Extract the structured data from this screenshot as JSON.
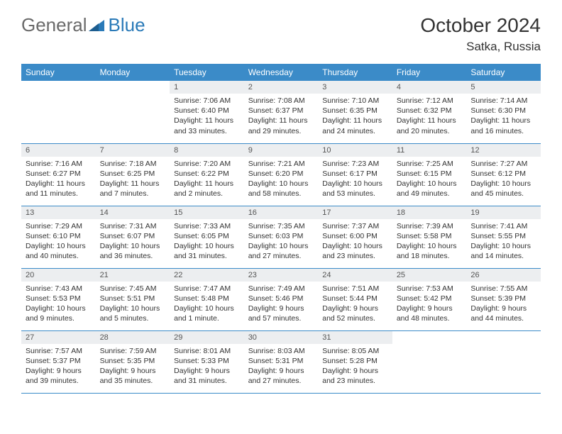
{
  "logo": {
    "general": "General",
    "blue": "Blue"
  },
  "title": "October 2024",
  "location": "Satka, Russia",
  "colors": {
    "header_bg": "#3b8bc8",
    "header_text": "#ffffff",
    "daynum_bg": "#eceef0",
    "body_text": "#333333",
    "logo_gray": "#6a6a6a",
    "logo_blue": "#2a7ab8",
    "page_bg": "#ffffff"
  },
  "weekdays": [
    "Sunday",
    "Monday",
    "Tuesday",
    "Wednesday",
    "Thursday",
    "Friday",
    "Saturday"
  ],
  "first_weekday_index": 2,
  "days": [
    {
      "n": 1,
      "sunrise": "7:06 AM",
      "sunset": "6:40 PM",
      "daylight": "11 hours and 33 minutes."
    },
    {
      "n": 2,
      "sunrise": "7:08 AM",
      "sunset": "6:37 PM",
      "daylight": "11 hours and 29 minutes."
    },
    {
      "n": 3,
      "sunrise": "7:10 AM",
      "sunset": "6:35 PM",
      "daylight": "11 hours and 24 minutes."
    },
    {
      "n": 4,
      "sunrise": "7:12 AM",
      "sunset": "6:32 PM",
      "daylight": "11 hours and 20 minutes."
    },
    {
      "n": 5,
      "sunrise": "7:14 AM",
      "sunset": "6:30 PM",
      "daylight": "11 hours and 16 minutes."
    },
    {
      "n": 6,
      "sunrise": "7:16 AM",
      "sunset": "6:27 PM",
      "daylight": "11 hours and 11 minutes."
    },
    {
      "n": 7,
      "sunrise": "7:18 AM",
      "sunset": "6:25 PM",
      "daylight": "11 hours and 7 minutes."
    },
    {
      "n": 8,
      "sunrise": "7:20 AM",
      "sunset": "6:22 PM",
      "daylight": "11 hours and 2 minutes."
    },
    {
      "n": 9,
      "sunrise": "7:21 AM",
      "sunset": "6:20 PM",
      "daylight": "10 hours and 58 minutes."
    },
    {
      "n": 10,
      "sunrise": "7:23 AM",
      "sunset": "6:17 PM",
      "daylight": "10 hours and 53 minutes."
    },
    {
      "n": 11,
      "sunrise": "7:25 AM",
      "sunset": "6:15 PM",
      "daylight": "10 hours and 49 minutes."
    },
    {
      "n": 12,
      "sunrise": "7:27 AM",
      "sunset": "6:12 PM",
      "daylight": "10 hours and 45 minutes."
    },
    {
      "n": 13,
      "sunrise": "7:29 AM",
      "sunset": "6:10 PM",
      "daylight": "10 hours and 40 minutes."
    },
    {
      "n": 14,
      "sunrise": "7:31 AM",
      "sunset": "6:07 PM",
      "daylight": "10 hours and 36 minutes."
    },
    {
      "n": 15,
      "sunrise": "7:33 AM",
      "sunset": "6:05 PM",
      "daylight": "10 hours and 31 minutes."
    },
    {
      "n": 16,
      "sunrise": "7:35 AM",
      "sunset": "6:03 PM",
      "daylight": "10 hours and 27 minutes."
    },
    {
      "n": 17,
      "sunrise": "7:37 AM",
      "sunset": "6:00 PM",
      "daylight": "10 hours and 23 minutes."
    },
    {
      "n": 18,
      "sunrise": "7:39 AM",
      "sunset": "5:58 PM",
      "daylight": "10 hours and 18 minutes."
    },
    {
      "n": 19,
      "sunrise": "7:41 AM",
      "sunset": "5:55 PM",
      "daylight": "10 hours and 14 minutes."
    },
    {
      "n": 20,
      "sunrise": "7:43 AM",
      "sunset": "5:53 PM",
      "daylight": "10 hours and 9 minutes."
    },
    {
      "n": 21,
      "sunrise": "7:45 AM",
      "sunset": "5:51 PM",
      "daylight": "10 hours and 5 minutes."
    },
    {
      "n": 22,
      "sunrise": "7:47 AM",
      "sunset": "5:48 PM",
      "daylight": "10 hours and 1 minute."
    },
    {
      "n": 23,
      "sunrise": "7:49 AM",
      "sunset": "5:46 PM",
      "daylight": "9 hours and 57 minutes."
    },
    {
      "n": 24,
      "sunrise": "7:51 AM",
      "sunset": "5:44 PM",
      "daylight": "9 hours and 52 minutes."
    },
    {
      "n": 25,
      "sunrise": "7:53 AM",
      "sunset": "5:42 PM",
      "daylight": "9 hours and 48 minutes."
    },
    {
      "n": 26,
      "sunrise": "7:55 AM",
      "sunset": "5:39 PM",
      "daylight": "9 hours and 44 minutes."
    },
    {
      "n": 27,
      "sunrise": "7:57 AM",
      "sunset": "5:37 PM",
      "daylight": "9 hours and 39 minutes."
    },
    {
      "n": 28,
      "sunrise": "7:59 AM",
      "sunset": "5:35 PM",
      "daylight": "9 hours and 35 minutes."
    },
    {
      "n": 29,
      "sunrise": "8:01 AM",
      "sunset": "5:33 PM",
      "daylight": "9 hours and 31 minutes."
    },
    {
      "n": 30,
      "sunrise": "8:03 AM",
      "sunset": "5:31 PM",
      "daylight": "9 hours and 27 minutes."
    },
    {
      "n": 31,
      "sunrise": "8:05 AM",
      "sunset": "5:28 PM",
      "daylight": "9 hours and 23 minutes."
    }
  ],
  "labels": {
    "sunrise": "Sunrise: ",
    "sunset": "Sunset: ",
    "daylight": "Daylight: "
  }
}
